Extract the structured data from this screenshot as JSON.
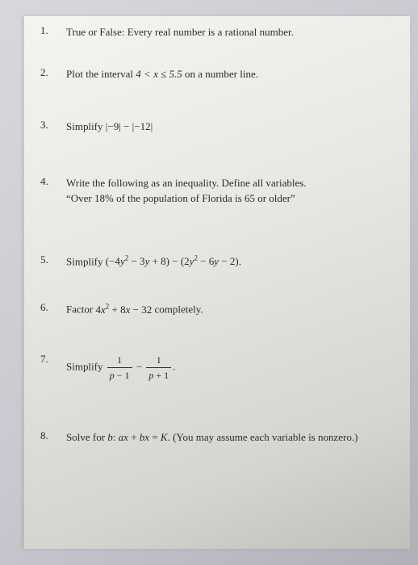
{
  "page": {
    "background_color": "#d8d8dc",
    "paper_color": "#f0f0ea",
    "text_color": "#2a2a2a",
    "font_family": "Times New Roman",
    "base_fontsize": 13
  },
  "questions": [
    {
      "num": "1.",
      "text": "True or False: Every real number is a rational number."
    },
    {
      "num": "2.",
      "text_before": "Plot the interval ",
      "math": "4 < x ≤ 5.5",
      "text_after": " on a number line."
    },
    {
      "num": "3.",
      "text_before": "Simplify ",
      "math": "|−9| − |−12|"
    },
    {
      "num": "4.",
      "line1": "Write the following as an inequality. Define all variables.",
      "line2": "“Over 18% of the population of Florida is 65 or older”"
    },
    {
      "num": "5.",
      "text_before": "Simplify ",
      "math": "(−4y² − 3y + 8) − (2y² − 6y − 2)",
      "text_after": "."
    },
    {
      "num": "6.",
      "text_before": "Factor ",
      "math": "4x² + 8x − 32",
      "text_after": " completely."
    },
    {
      "num": "7.",
      "text_before": "Simplify ",
      "frac1_num": "1",
      "frac1_den": "p − 1",
      "minus": "−",
      "frac2_num": "1",
      "frac2_den": "p + 1",
      "text_after": "."
    },
    {
      "num": "8.",
      "text_before": "Solve for ",
      "var": "b",
      "colon": ":  ",
      "math": "ax + bx = K",
      "text_after": ". (You may assume each variable is nonzero.)"
    }
  ]
}
